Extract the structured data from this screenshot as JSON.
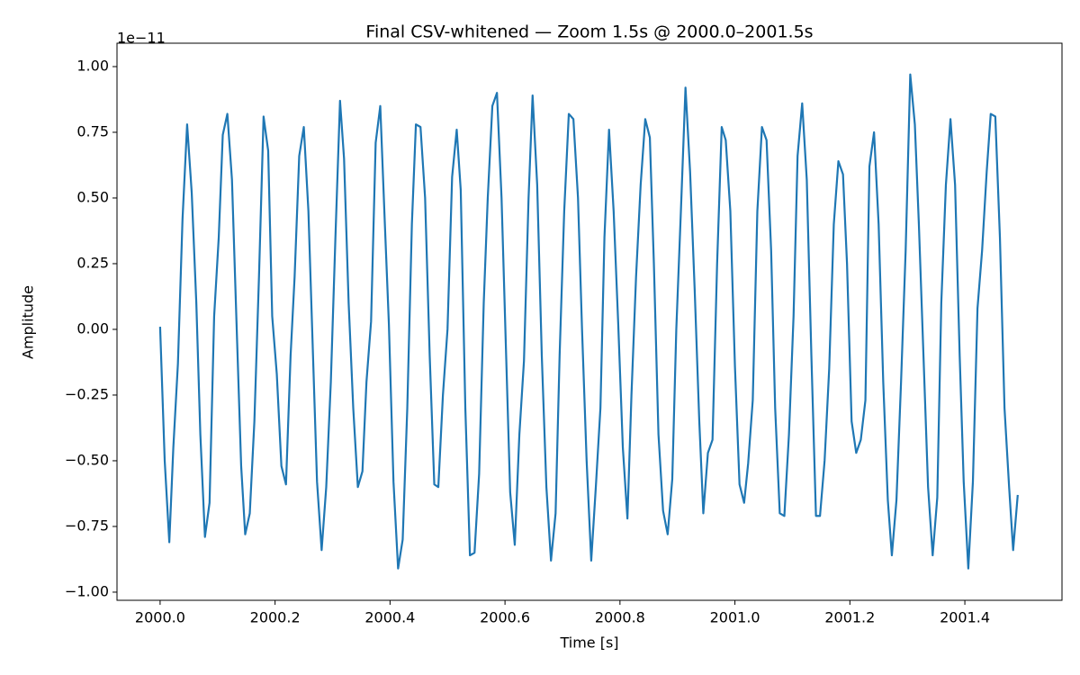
{
  "chart_data": {
    "type": "line",
    "title": "Final CSV-whitened — Zoom 1.5s @ 2000.0–2001.5s",
    "x_label": "Time [s]",
    "y_label": "Amplitude",
    "y_offset_text": "1e−11",
    "xlim": [
      1999.925,
      2001.569
    ],
    "ylim": [
      -1.031,
      1.089
    ],
    "xticks": [
      {
        "value": 2000,
        "label": "2000.0"
      },
      2000.2,
      2000.4,
      2000.6,
      2000.8,
      {
        "value": 2001,
        "label": "2001.0"
      },
      2001.2,
      2001.4
    ],
    "yticks": [
      {
        "value": -1,
        "label": "−1.00"
      },
      {
        "value": -0.75,
        "label": "−0.75"
      },
      {
        "value": -0.5,
        "label": "−0.50"
      },
      {
        "value": -0.25,
        "label": "−0.25"
      },
      {
        "value": 0,
        "label": "0.00"
      },
      {
        "value": 0.25,
        "label": "0.25"
      },
      {
        "value": 0.5,
        "label": "0.50"
      },
      {
        "value": 0.75,
        "label": "0.75"
      },
      {
        "value": 1,
        "label": "1.00"
      }
    ],
    "grid": false,
    "x": [
      2000.0,
      2000.008,
      2000.016,
      2000.023,
      2000.031,
      2000.039,
      2000.047,
      2000.055,
      2000.063,
      2000.07,
      2000.078,
      2000.086,
      2000.094,
      2000.102,
      2000.109,
      2000.117,
      2000.125,
      2000.133,
      2000.141,
      2000.148,
      2000.156,
      2000.164,
      2000.172,
      2000.18,
      2000.188,
      2000.195,
      2000.203,
      2000.211,
      2000.219,
      2000.227,
      2000.234,
      2000.242,
      2000.25,
      2000.258,
      2000.266,
      2000.273,
      2000.281,
      2000.289,
      2000.297,
      2000.305,
      2000.313,
      2000.32,
      2000.328,
      2000.336,
      2000.344,
      2000.352,
      2000.359,
      2000.367,
      2000.375,
      2000.383,
      2000.391,
      2000.398,
      2000.406,
      2000.414,
      2000.422,
      2000.43,
      2000.438,
      2000.445,
      2000.453,
      2000.461,
      2000.469,
      2000.477,
      2000.484,
      2000.492,
      2000.5,
      2000.508,
      2000.516,
      2000.523,
      2000.531,
      2000.539,
      2000.547,
      2000.555,
      2000.563,
      2000.57,
      2000.578,
      2000.586,
      2000.594,
      2000.602,
      2000.609,
      2000.617,
      2000.625,
      2000.633,
      2000.641,
      2000.648,
      2000.656,
      2000.664,
      2000.672,
      2000.68,
      2000.688,
      2000.695,
      2000.703,
      2000.711,
      2000.719,
      2000.727,
      2000.734,
      2000.742,
      2000.75,
      2000.758,
      2000.766,
      2000.773,
      2000.781,
      2000.789,
      2000.797,
      2000.805,
      2000.813,
      2000.82,
      2000.828,
      2000.836,
      2000.844,
      2000.852,
      2000.859,
      2000.867,
      2000.875,
      2000.883,
      2000.891,
      2000.898,
      2000.906,
      2000.914,
      2000.922,
      2000.93,
      2000.938,
      2000.945,
      2000.953,
      2000.961,
      2000.969,
      2000.977,
      2000.984,
      2000.992,
      2001.0,
      2001.008,
      2001.016,
      2001.023,
      2001.031,
      2001.039,
      2001.047,
      2001.055,
      2001.063,
      2001.07,
      2001.078,
      2001.086,
      2001.094,
      2001.102,
      2001.109,
      2001.117,
      2001.125,
      2001.133,
      2001.141,
      2001.148,
      2001.156,
      2001.164,
      2001.172,
      2001.18,
      2001.188,
      2001.195,
      2001.203,
      2001.211,
      2001.219,
      2001.227,
      2001.234,
      2001.242,
      2001.25,
      2001.258,
      2001.266,
      2001.273,
      2001.281,
      2001.289,
      2001.297,
      2001.305,
      2001.313,
      2001.32,
      2001.328,
      2001.336,
      2001.344,
      2001.352,
      2001.359,
      2001.367,
      2001.375,
      2001.383,
      2001.391,
      2001.398,
      2001.406,
      2001.414,
      2001.422,
      2001.43,
      2001.438,
      2001.445,
      2001.453,
      2001.461,
      2001.469,
      2001.477,
      2001.484,
      2001.492
    ],
    "series": [
      {
        "color": "#1f77b4",
        "values": [
          0.01,
          -0.5,
          -0.81,
          -0.45,
          -0.13,
          0.42,
          0.78,
          0.52,
          0.1,
          -0.4,
          -0.79,
          -0.66,
          0.05,
          0.35,
          0.74,
          0.82,
          0.57,
          0.02,
          -0.52,
          -0.78,
          -0.7,
          -0.35,
          0.2,
          0.81,
          0.68,
          0.05,
          -0.17,
          -0.52,
          -0.59,
          -0.1,
          0.2,
          0.66,
          0.77,
          0.45,
          -0.1,
          -0.58,
          -0.84,
          -0.6,
          -0.2,
          0.35,
          0.87,
          0.65,
          0.1,
          -0.3,
          -0.6,
          -0.54,
          -0.2,
          0.03,
          0.71,
          0.85,
          0.4,
          0.02,
          -0.58,
          -0.91,
          -0.8,
          -0.3,
          0.4,
          0.78,
          0.77,
          0.5,
          -0.1,
          -0.59,
          -0.6,
          -0.25,
          0.0,
          0.58,
          0.76,
          0.53,
          -0.3,
          -0.86,
          -0.85,
          -0.55,
          0.1,
          0.5,
          0.85,
          0.9,
          0.5,
          -0.1,
          -0.62,
          -0.82,
          -0.4,
          -0.12,
          0.5,
          0.89,
          0.55,
          -0.1,
          -0.6,
          -0.88,
          -0.7,
          -0.1,
          0.45,
          0.82,
          0.8,
          0.5,
          0.0,
          -0.5,
          -0.88,
          -0.6,
          -0.3,
          0.35,
          0.76,
          0.45,
          0.02,
          -0.45,
          -0.72,
          -0.25,
          0.2,
          0.55,
          0.8,
          0.73,
          0.25,
          -0.4,
          -0.69,
          -0.78,
          -0.57,
          0.0,
          0.45,
          0.92,
          0.6,
          0.15,
          -0.35,
          -0.7,
          -0.47,
          -0.42,
          0.25,
          0.77,
          0.72,
          0.45,
          -0.14,
          -0.59,
          -0.66,
          -0.51,
          -0.27,
          0.45,
          0.77,
          0.72,
          0.3,
          -0.3,
          -0.7,
          -0.71,
          -0.4,
          0.05,
          0.66,
          0.86,
          0.57,
          -0.1,
          -0.71,
          -0.71,
          -0.5,
          -0.15,
          0.4,
          0.64,
          0.59,
          0.25,
          -0.35,
          -0.47,
          -0.42,
          -0.27,
          0.62,
          0.75,
          0.4,
          -0.2,
          -0.65,
          -0.86,
          -0.65,
          -0.2,
          0.3,
          0.97,
          0.78,
          0.4,
          -0.1,
          -0.6,
          -0.86,
          -0.64,
          0.1,
          0.55,
          0.8,
          0.55,
          -0.1,
          -0.58,
          -0.91,
          -0.58,
          0.08,
          0.3,
          0.6,
          0.82,
          0.81,
          0.35,
          -0.3,
          -0.6,
          -0.84,
          -0.63
        ]
      }
    ]
  }
}
